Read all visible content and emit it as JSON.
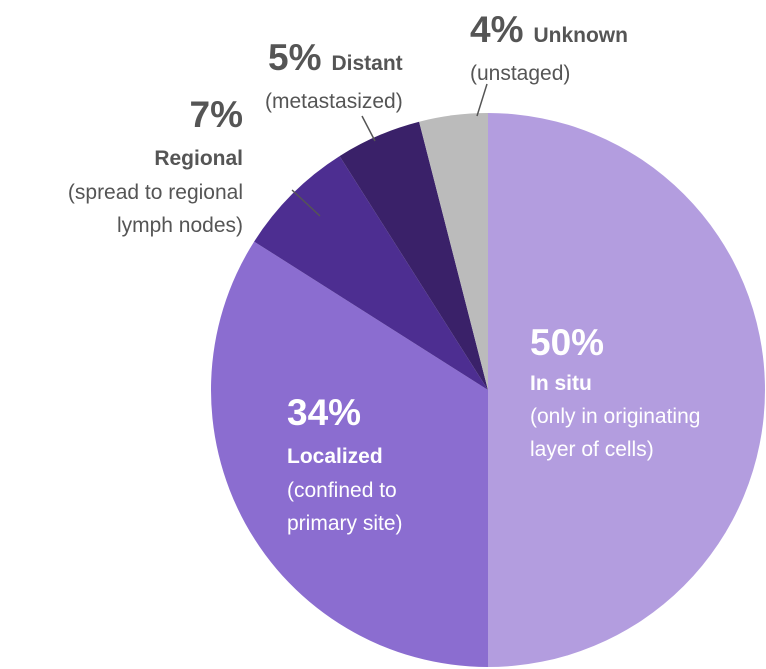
{
  "chart_data": {
    "type": "pie",
    "categories": [
      "In situ",
      "Localized",
      "Regional",
      "Distant",
      "Unknown"
    ],
    "values": [
      50,
      34,
      7,
      5,
      4
    ],
    "value_labels": [
      "50%",
      "34%",
      "7%",
      "5%",
      "4%"
    ],
    "descriptions": [
      [
        "(only in originating",
        "layer of cells)"
      ],
      [
        "(confined to",
        "primary site)"
      ],
      [
        "(spread to regional",
        "lymph nodes)"
      ],
      [
        "(metastasized)"
      ],
      [
        "(unstaged)"
      ]
    ],
    "colors": [
      "#b39ddf",
      "#8b6dd0",
      "#4d2e91",
      "#3a2169",
      "#bbbbbb"
    ]
  }
}
